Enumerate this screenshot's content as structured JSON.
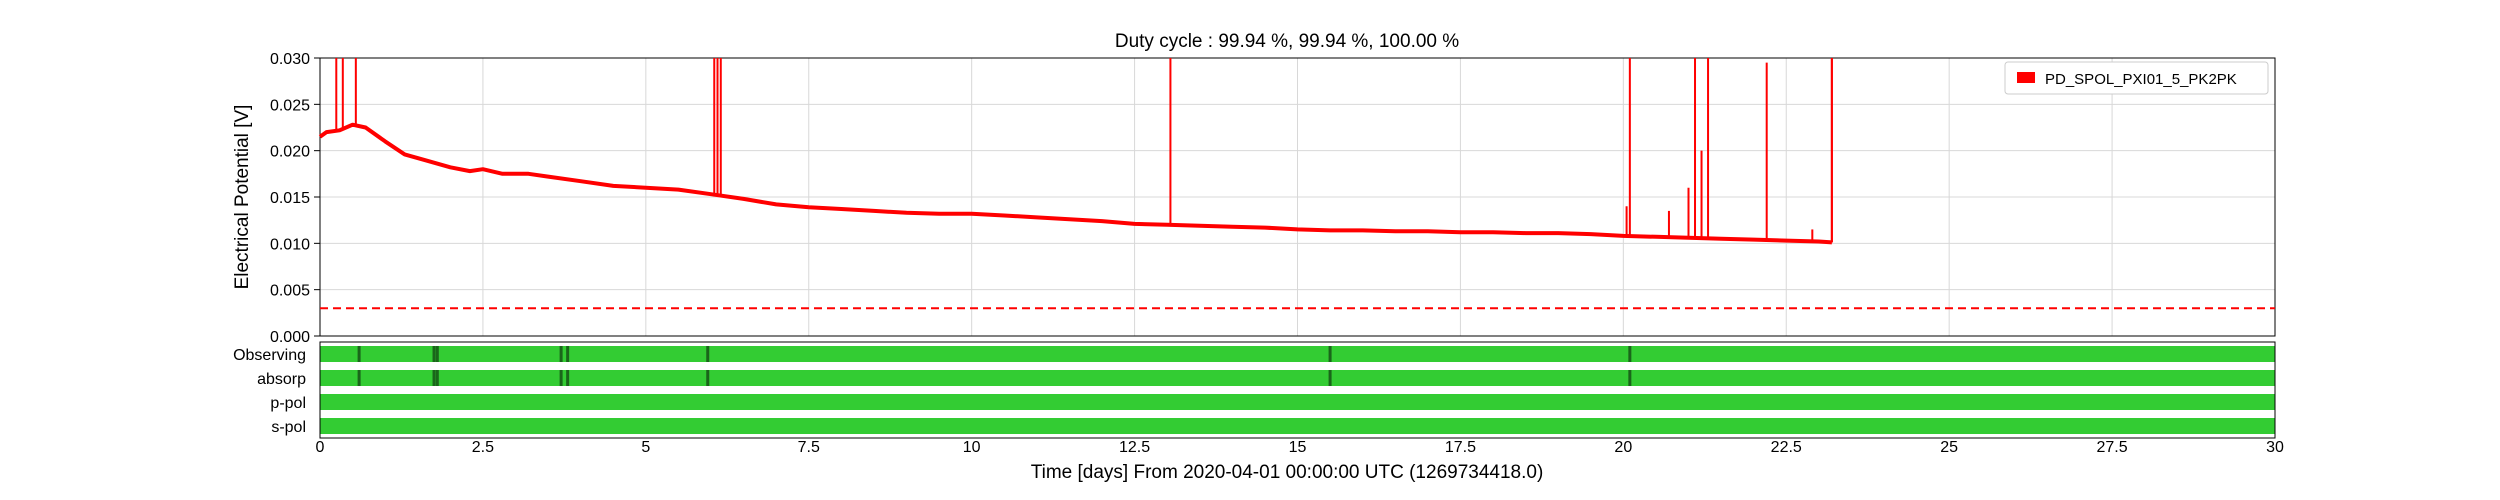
{
  "chart_data": {
    "type": "line",
    "title": "Duty cycle : 99.94 %, 99.94 %, 100.00 %",
    "xlabel": "Time [days] From 2020-04-01 00:00:00 UTC (1269734418.0)",
    "ylabel": "Electrical Potential [V]",
    "xlim": [
      0,
      30
    ],
    "ylim": [
      0,
      0.03
    ],
    "x_ticks": [
      "0",
      "2.5",
      "5",
      "7.5",
      "10",
      "12.5",
      "15",
      "17.5",
      "20",
      "22.5",
      "25",
      "27.5",
      "30"
    ],
    "y_ticks": [
      "0.000",
      "0.005",
      "0.010",
      "0.015",
      "0.020",
      "0.025",
      "0.030"
    ],
    "grid": true,
    "legend": {
      "placement": "top-right",
      "entries": [
        "PD_SPOL_PXI01_5_PK2PK"
      ]
    },
    "series": [
      {
        "name": "PD_SPOL_PXI01_5_PK2PK",
        "color": "#ff0000",
        "x": [
          0,
          0.1,
          0.3,
          0.5,
          0.7,
          1.0,
          1.3,
          1.6,
          2.0,
          2.3,
          2.5,
          2.8,
          3.2,
          3.5,
          4.0,
          4.5,
          5.0,
          5.5,
          6.0,
          6.5,
          7.0,
          7.5,
          8.0,
          8.5,
          9.0,
          9.5,
          10.0,
          10.5,
          11.0,
          11.5,
          12.0,
          12.5,
          13.0,
          13.5,
          14.0,
          14.5,
          15.0,
          15.5,
          16.0,
          16.5,
          17.0,
          17.5,
          18.0,
          18.5,
          19.0,
          19.5,
          20.0,
          20.5,
          21.0,
          21.5,
          22.0,
          22.5,
          23.0,
          23.2
        ],
        "y": [
          0.0215,
          0.022,
          0.0222,
          0.0228,
          0.0225,
          0.021,
          0.0196,
          0.019,
          0.0182,
          0.0178,
          0.018,
          0.0175,
          0.0175,
          0.0172,
          0.0167,
          0.0162,
          0.016,
          0.0158,
          0.0153,
          0.0148,
          0.0142,
          0.0139,
          0.0137,
          0.0135,
          0.0133,
          0.0132,
          0.0132,
          0.013,
          0.0128,
          0.0126,
          0.0124,
          0.0121,
          0.012,
          0.0119,
          0.0118,
          0.0117,
          0.0115,
          0.0114,
          0.0114,
          0.0113,
          0.0113,
          0.0112,
          0.0112,
          0.0111,
          0.0111,
          0.011,
          0.0108,
          0.0107,
          0.0106,
          0.0105,
          0.0104,
          0.0103,
          0.0102,
          0.0101
        ]
      }
    ],
    "spikes": [
      {
        "x": 0.25,
        "y": 0.03
      },
      {
        "x": 0.35,
        "y": 0.03
      },
      {
        "x": 0.55,
        "y": 0.03
      },
      {
        "x": 6.05,
        "y": 0.03
      },
      {
        "x": 6.1,
        "y": 0.03
      },
      {
        "x": 6.15,
        "y": 0.03
      },
      {
        "x": 13.05,
        "y": 0.03
      },
      {
        "x": 20.05,
        "y": 0.014
      },
      {
        "x": 20.1,
        "y": 0.03
      },
      {
        "x": 20.7,
        "y": 0.0135
      },
      {
        "x": 21.0,
        "y": 0.016
      },
      {
        "x": 21.1,
        "y": 0.03
      },
      {
        "x": 21.2,
        "y": 0.02
      },
      {
        "x": 21.3,
        "y": 0.03
      },
      {
        "x": 22.2,
        "y": 0.0295
      },
      {
        "x": 22.9,
        "y": 0.0115
      },
      {
        "x": 23.2,
        "y": 0.03
      }
    ],
    "threshold": {
      "y": 0.003,
      "color": "#ff0000",
      "style": "dashed"
    },
    "state_segments": {
      "labels": [
        "Observing",
        "absorp",
        "p-pol",
        "s-pol"
      ],
      "active_color": "#33cc33",
      "gap_color": "#1a661a",
      "gaps": [
        [
          0.6,
          1.75,
          1.8,
          3.7,
          3.8,
          5.95,
          15.5,
          20.1
        ],
        [
          0.6,
          1.75,
          1.8,
          3.7,
          3.8,
          5.95,
          15.5,
          20.1
        ],
        [],
        []
      ]
    }
  }
}
